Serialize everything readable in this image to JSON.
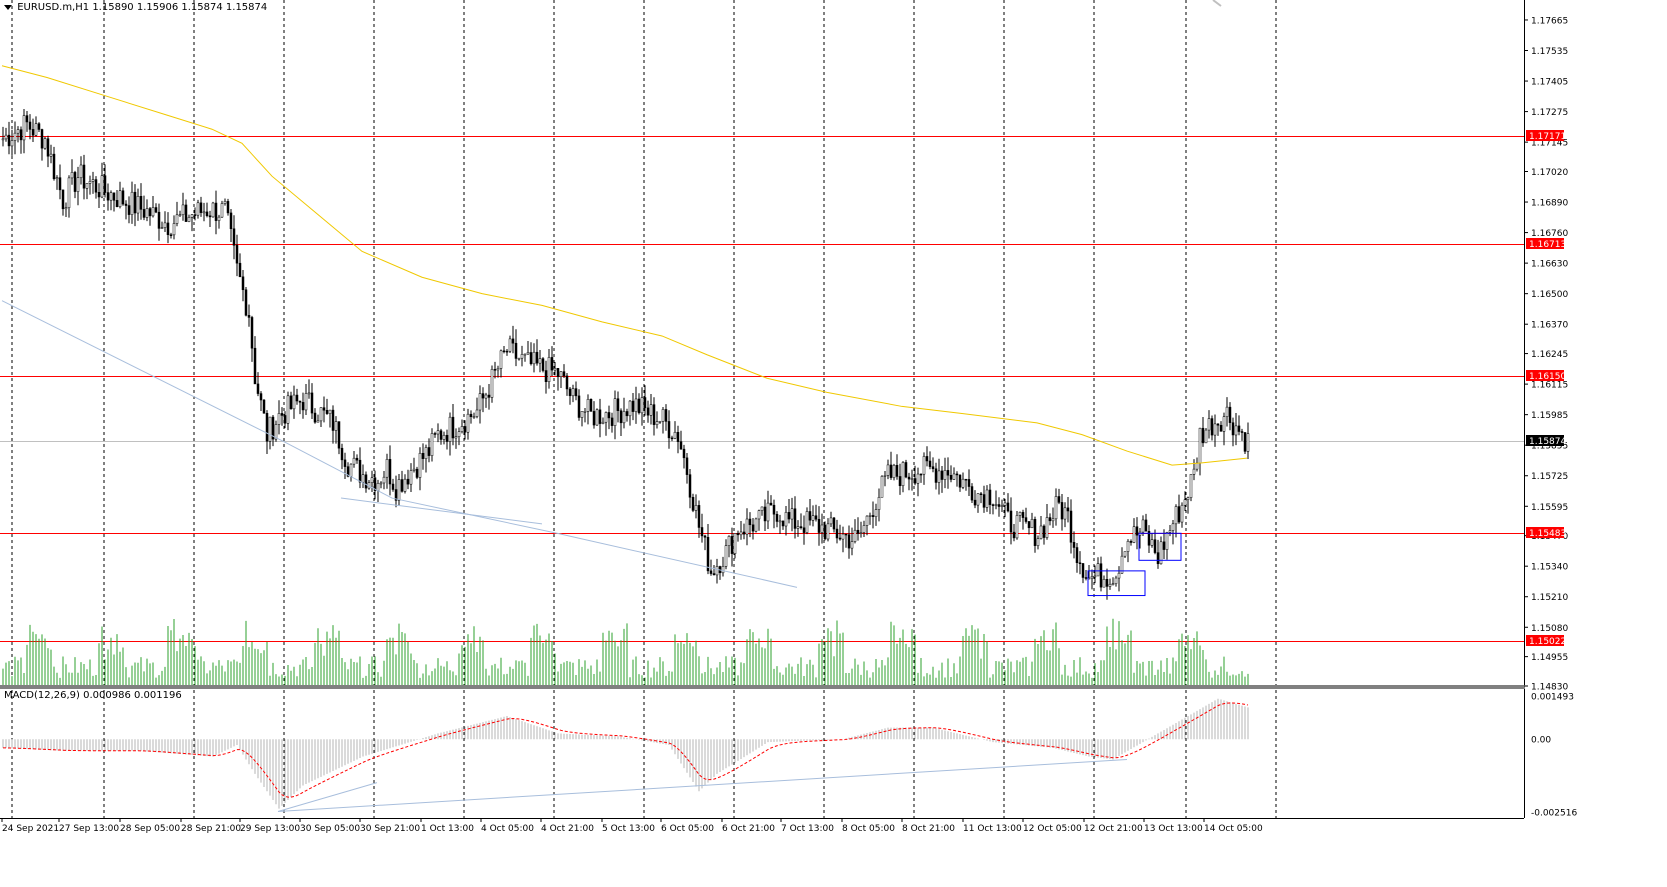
{
  "header": {
    "symbol": "EURUSD.m,H1",
    "ohlc": "1.15890 1.15906 1.15874 1.15874"
  },
  "macd": {
    "label": "MACD(12,26,9) 0.000986 0.001196",
    "params": "12,26,9",
    "main_value": 0.000986,
    "signal_value": 0.001196,
    "ticks": [
      "0.001493",
      "0.00",
      "-0.002516"
    ],
    "ylim": [
      -0.002516,
      0.001493
    ]
  },
  "chart_data": {
    "type": "candlestick",
    "symbol": "EURUSD.m",
    "timeframe": "H1",
    "ylim": [
      1.1483,
      1.1775
    ],
    "price_ticks": [
      "1.17665",
      "1.17535",
      "1.17405",
      "1.17275",
      "1.17145",
      "1.17020",
      "1.16890",
      "1.16760",
      "1.16630",
      "1.16500",
      "1.16370",
      "1.16245",
      "1.16115",
      "1.15985",
      "1.15855",
      "1.15725",
      "1.15595",
      "1.15470",
      "1.15340",
      "1.15210",
      "1.15080",
      "1.14955",
      "1.14830"
    ],
    "x_labels": [
      "24 Sep 2021",
      "27 Sep 13:00",
      "28 Sep 05:00",
      "28 Sep 21:00",
      "29 Sep 13:00",
      "30 Sep 05:00",
      "30 Sep 21:00",
      "1 Oct 13:00",
      "4 Oct 05:00",
      "4 Oct 21:00",
      "5 Oct 13:00",
      "6 Oct 05:00",
      "6 Oct 21:00",
      "7 Oct 13:00",
      "8 Oct 05:00",
      "8 Oct 21:00",
      "11 Oct 13:00",
      "12 Oct 05:00",
      "12 Oct 21:00",
      "13 Oct 13:00",
      "14 Oct 05:00"
    ],
    "horizontal_levels": [
      {
        "price": 1.15022,
        "label": "1.15022"
      },
      {
        "price": 1.15483,
        "label": "1.15483"
      },
      {
        "price": 1.1615,
        "label": "1.16150"
      },
      {
        "price": 1.16713,
        "label": "1.16713"
      },
      {
        "price": 1.17171,
        "label": "1.17171"
      }
    ],
    "current_price": {
      "price": 1.15874,
      "label": "1.15874"
    },
    "close_path": [
      [
        0,
        1.1716
      ],
      [
        8,
        1.1722
      ],
      [
        14,
        1.1716
      ],
      [
        20,
        1.169
      ],
      [
        25,
        1.17
      ],
      [
        35,
        1.1693
      ],
      [
        48,
        1.1685
      ],
      [
        55,
        1.168
      ],
      [
        68,
        1.1686
      ],
      [
        74,
        1.1685
      ],
      [
        78,
        1.166
      ],
      [
        82,
        1.1642
      ],
      [
        84,
        1.1615
      ],
      [
        88,
        1.159
      ],
      [
        92,
        1.1598
      ],
      [
        100,
        1.1605
      ],
      [
        110,
        1.1595
      ],
      [
        115,
        1.1578
      ],
      [
        120,
        1.1573
      ],
      [
        125,
        1.1571
      ],
      [
        128,
        1.1576
      ],
      [
        131,
        1.1568
      ],
      [
        136,
        1.1575
      ],
      [
        142,
        1.1583
      ],
      [
        145,
        1.159
      ],
      [
        152,
        1.1595
      ],
      [
        158,
        1.16
      ],
      [
        168,
        1.1626
      ],
      [
        175,
        1.162
      ],
      [
        185,
        1.1616
      ],
      [
        190,
        1.1605
      ],
      [
        196,
        1.1598
      ],
      [
        205,
        1.16
      ],
      [
        210,
        1.1603
      ],
      [
        220,
        1.1596
      ],
      [
        225,
        1.159
      ],
      [
        228,
        1.1575
      ],
      [
        232,
        1.1551
      ],
      [
        236,
        1.1532
      ],
      [
        241,
        1.154
      ],
      [
        245,
        1.155
      ],
      [
        252,
        1.1553
      ],
      [
        258,
        1.1558
      ],
      [
        262,
        1.1553
      ],
      [
        270,
        1.1552
      ],
      [
        280,
        1.1547
      ],
      [
        285,
        1.1545
      ],
      [
        290,
        1.156
      ],
      [
        295,
        1.1572
      ],
      [
        305,
        1.1575
      ],
      [
        315,
        1.1575
      ],
      [
        325,
        1.1565
      ],
      [
        330,
        1.1565
      ],
      [
        335,
        1.1553
      ],
      [
        345,
        1.1548
      ],
      [
        352,
        1.156
      ],
      [
        355,
        1.1555
      ],
      [
        358,
        1.154
      ],
      [
        362,
        1.1529
      ],
      [
        366,
        1.153
      ],
      [
        371,
        1.1531
      ],
      [
        374,
        1.1545
      ],
      [
        380,
        1.1549
      ],
      [
        385,
        1.1538
      ],
      [
        389,
        1.155
      ],
      [
        393,
        1.156
      ],
      [
        397,
        1.1573
      ],
      [
        399,
        1.159
      ],
      [
        403,
        1.1595
      ],
      [
        408,
        1.1599
      ],
      [
        412,
        1.1592
      ],
      [
        415,
        1.1587
      ]
    ],
    "series": [
      {
        "name": "",
        "type": "moving-average",
        "color": "#f0c800",
        "points": [
          [
            0,
            1.1747
          ],
          [
            15,
            1.1742
          ],
          [
            35,
            1.1734
          ],
          [
            55,
            1.1726
          ],
          [
            70,
            1.172
          ],
          [
            80,
            1.1714
          ],
          [
            90,
            1.17
          ],
          [
            105,
            1.1684
          ],
          [
            120,
            1.1668
          ],
          [
            140,
            1.1657
          ],
          [
            160,
            1.165
          ],
          [
            180,
            1.1645
          ],
          [
            200,
            1.1638
          ],
          [
            220,
            1.1632
          ],
          [
            235,
            1.1624
          ],
          [
            255,
            1.1614
          ],
          [
            275,
            1.1608
          ],
          [
            300,
            1.1602
          ],
          [
            320,
            1.1599
          ],
          [
            345,
            1.1595
          ],
          [
            360,
            1.159
          ],
          [
            375,
            1.1583
          ],
          [
            390,
            1.1577
          ],
          [
            400,
            1.1578
          ],
          [
            415,
            1.158
          ]
        ]
      },
      {
        "name": "",
        "type": "trendline",
        "color": "#a8bedc",
        "points": [
          [
            0,
            1.1647
          ],
          [
            94,
            1.1587
          ],
          [
            130,
            1.1563
          ],
          [
            185,
            1.1548
          ],
          [
            265,
            1.1525
          ]
        ]
      },
      {
        "name": "",
        "type": "trendline",
        "color": "#a8bedc",
        "points": [
          [
            113,
            1.1563
          ],
          [
            180,
            1.1552
          ]
        ]
      }
    ],
    "boxes": [
      {
        "x_from": 362,
        "x_to": 381,
        "y_from": 1.15215,
        "y_to": 1.1532,
        "color": "#0000ff"
      },
      {
        "x_from": 379,
        "x_to": 393,
        "y_from": 1.15365,
        "y_to": 1.1548,
        "color": "#0000ff"
      }
    ],
    "volume_color": "#2ea02e",
    "bull_color": "#000000",
    "bear_color": "#000000",
    "grid": true,
    "level_color": "#ff0000",
    "label_bg": "#ff0000"
  }
}
